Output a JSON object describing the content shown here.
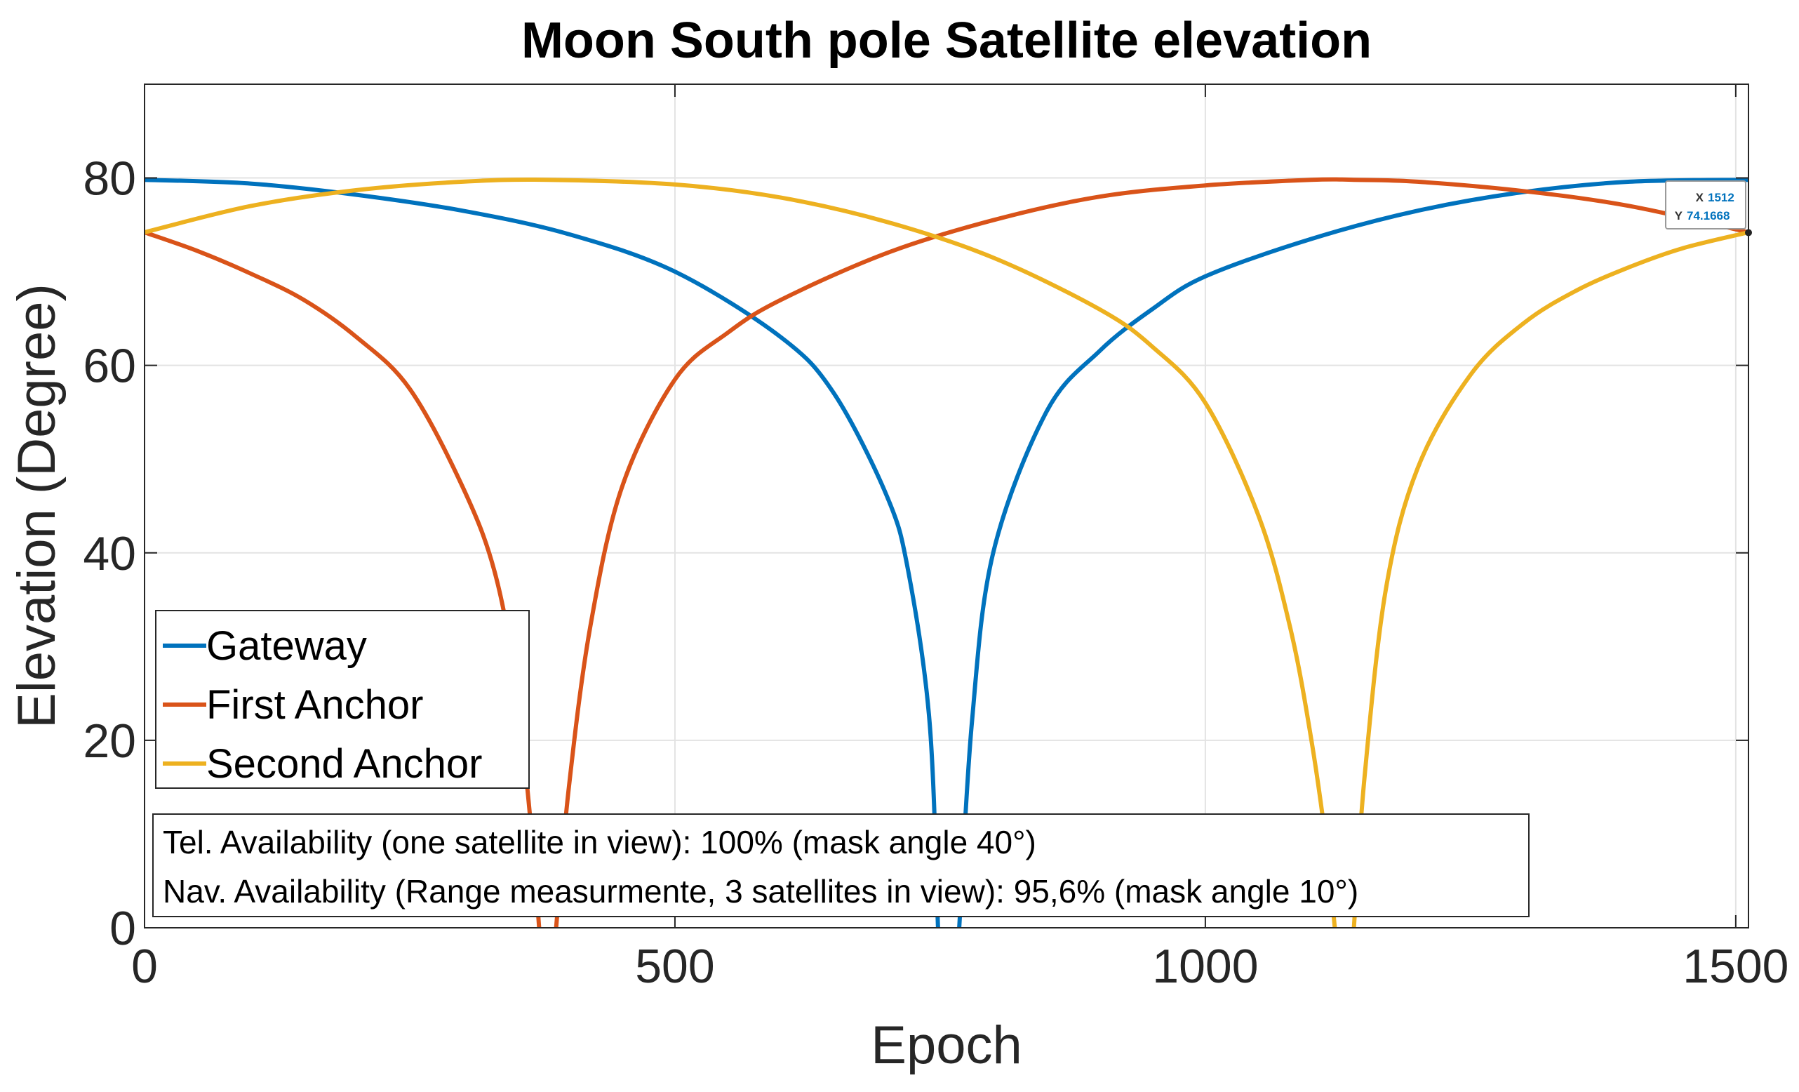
{
  "chart_data": {
    "type": "line",
    "title": "Moon South pole Satellite elevation",
    "xlabel": "Epoch",
    "ylabel": "Elevation (Degree)",
    "xlim": [
      0,
      1512
    ],
    "ylim": [
      0,
      90
    ],
    "xticks": [
      0,
      500,
      1000,
      1500
    ],
    "yticks": [
      0,
      20,
      40,
      60,
      80
    ],
    "xtick_labels": [
      "0",
      "500",
      "1000",
      "1500"
    ],
    "ytick_labels": [
      "0",
      "20",
      "40",
      "60",
      "80"
    ],
    "grid": true,
    "legend_position": "middle-left",
    "series": [
      {
        "name": "Gateway",
        "color": "#0072BD",
        "x": [
          0,
          100,
          200,
          300,
          400,
          500,
          600,
          650,
          700,
          720,
          740,
          748,
          758,
          768,
          780,
          800,
          850,
          900,
          950,
          1000,
          1100,
          1200,
          1300,
          1400,
          1512
        ],
        "y": [
          79.8,
          79.4,
          78.2,
          76.5,
          74.0,
          70.0,
          63.0,
          57.0,
          46.0,
          38.0,
          22.0,
          0,
          null,
          0,
          22.0,
          40.0,
          55.0,
          61.5,
          66.0,
          69.5,
          73.5,
          76.5,
          78.5,
          79.6,
          79.8
        ]
      },
      {
        "name": "First Anchor",
        "color": "#D95319",
        "x": [
          0,
          50,
          100,
          150,
          200,
          250,
          300,
          330,
          350,
          365,
          372,
          380,
          388,
          400,
          420,
          450,
          500,
          550,
          600,
          700,
          800,
          900,
          1000,
          1100,
          1140,
          1200,
          1300,
          1400,
          1512
        ],
        "y": [
          74.2,
          72.2,
          69.8,
          67.0,
          63.0,
          57.5,
          47.0,
          38.0,
          26.0,
          10.0,
          0,
          null,
          0,
          15.0,
          32.0,
          47.0,
          58.5,
          63.5,
          67.0,
          72.0,
          75.5,
          78.0,
          79.2,
          79.8,
          79.8,
          79.6,
          78.6,
          77.0,
          74.2
        ]
      },
      {
        "name": "Second Anchor",
        "color": "#EDB120",
        "x": [
          0,
          100,
          200,
          300,
          380,
          500,
          600,
          700,
          800,
          900,
          950,
          1000,
          1050,
          1080,
          1100,
          1115,
          1122,
          1131,
          1140,
          1150,
          1170,
          1200,
          1250,
          1300,
          1350,
          1400,
          1450,
          1512
        ],
        "y": [
          74.2,
          77.0,
          78.7,
          79.6,
          79.8,
          79.3,
          77.9,
          75.3,
          71.5,
          66.0,
          62.0,
          56.0,
          44.0,
          32.0,
          20.0,
          8.0,
          0,
          null,
          0,
          16.0,
          36.0,
          49.0,
          59.0,
          64.5,
          68.0,
          70.5,
          72.5,
          74.2
        ]
      }
    ],
    "datatip": {
      "x_label": "X",
      "x_value": "1512",
      "y_label": "Y",
      "y_value": "74.1668"
    },
    "annotation_lines": [
      "Tel. Availability (one satellite in view): 100% (mask angle 40°)",
      "Nav. Availability (Range measurmente, 3 satellites in view): 95,6% (mask angle 10°)"
    ]
  }
}
